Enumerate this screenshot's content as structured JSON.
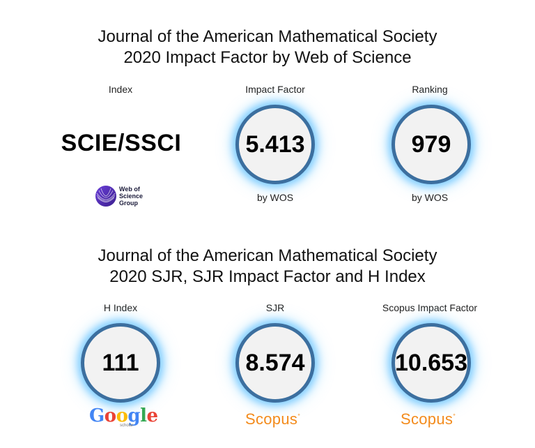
{
  "section1": {
    "title_line1": "Journal of the American Mathematical Society",
    "title_line2": "2020 Impact Factor by Web of Science",
    "index": {
      "label": "Index",
      "value": "SCIE/SSCI",
      "logo_text_1": "Web of",
      "logo_text_2": "Science",
      "logo_text_3": "Group"
    },
    "impact_factor": {
      "label": "Impact Factor",
      "value": "5.413",
      "source": "by WOS"
    },
    "ranking": {
      "label": "Ranking",
      "value": "979",
      "source": "by WOS"
    }
  },
  "section2": {
    "title_line1": "Journal of the American Mathematical Society",
    "title_line2": "2020 SJR, SJR Impact Factor and H Index",
    "h_index": {
      "label": "H Index",
      "value": "111",
      "logo": "Google",
      "logo_sub": "scholar"
    },
    "sjr": {
      "label": "SJR",
      "value": "8.574",
      "logo": "Scopus"
    },
    "scopus_if": {
      "label": "Scopus Impact Factor",
      "value": "10.653",
      "logo": "Scopus"
    }
  },
  "colors": {
    "ring": "#3c6f9f",
    "glow": "#46b4ff",
    "circle_fill": "#f2f2f2",
    "scopus": "#f38b1c",
    "google_blue": "#4285f4",
    "google_red": "#ea4335",
    "google_yellow": "#fbbc05",
    "google_green": "#34a853"
  },
  "icons": [
    "web-of-science-logo",
    "google-scholar-logo",
    "scopus-logo"
  ]
}
